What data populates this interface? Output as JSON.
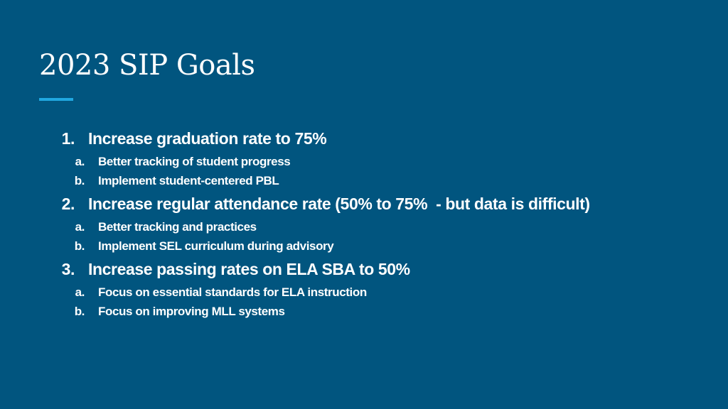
{
  "slide": {
    "title": "2023 SIP Goals",
    "goals": [
      {
        "number": "1.",
        "text": "Increase graduation rate to 75%",
        "subitems": [
          {
            "letter": "a.",
            "text": "Better tracking of student progress"
          },
          {
            "letter": "b.",
            "text": "Implement student-centered PBL"
          }
        ]
      },
      {
        "number": "2.",
        "text": "Increase regular attendance rate (50% to 75%  - but data is difficult)",
        "subitems": [
          {
            "letter": "a.",
            "text": "Better tracking and practices"
          },
          {
            "letter": "b.",
            "text": "Implement SEL curriculum during advisory"
          }
        ]
      },
      {
        "number": "3.",
        "text": "Increase passing rates on ELA SBA to 50%",
        "subitems": [
          {
            "letter": "a.",
            "text": "Focus on essential standards for ELA instruction"
          },
          {
            "letter": "b.",
            "text": "Focus on improving MLL systems"
          }
        ]
      }
    ]
  }
}
